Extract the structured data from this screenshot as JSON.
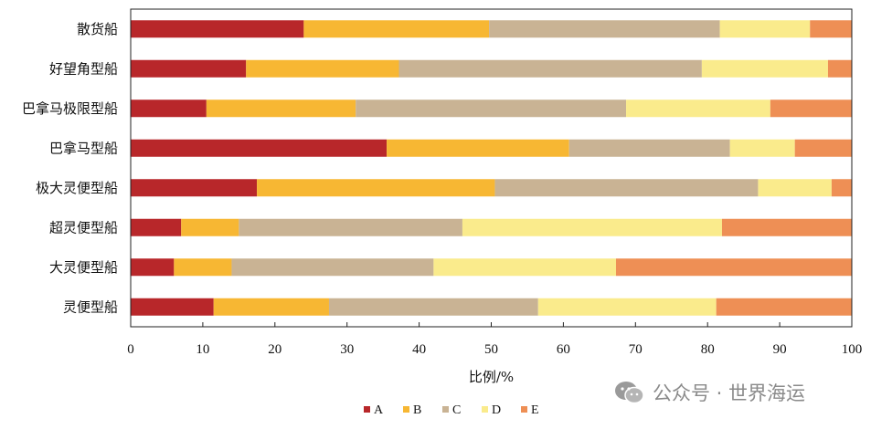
{
  "chart_data": {
    "type": "bar",
    "orientation": "horizontal",
    "stacked": true,
    "title": "",
    "xlabel": "比例/%",
    "ylabel": "",
    "xlim": [
      0,
      100
    ],
    "xticks": [
      0,
      10,
      20,
      30,
      40,
      50,
      60,
      70,
      80,
      90,
      100
    ],
    "grid": false,
    "legend_position": "bottom",
    "categories": [
      "散货船",
      "好望角型船",
      "巴拿马极限型船",
      "巴拿马型船",
      "极大灵便型船",
      "超灵便型船",
      "大灵便型船",
      "灵便型船"
    ],
    "series": [
      {
        "name": "A",
        "color": "#b8272a",
        "values": [
          24,
          16,
          10.5,
          35.5,
          17.5,
          7,
          6,
          11.5
        ]
      },
      {
        "name": "B",
        "color": "#f7b733",
        "values": [
          25.7,
          21.2,
          20.7,
          25.3,
          33,
          8,
          8,
          16
        ]
      },
      {
        "name": "C",
        "color": "#c9b394",
        "values": [
          32,
          42,
          37.5,
          22.3,
          36.5,
          31,
          28,
          29
        ]
      },
      {
        "name": "D",
        "color": "#faeb8c",
        "values": [
          12.5,
          17.5,
          20,
          9,
          10.2,
          36,
          25.3,
          24.7
        ]
      },
      {
        "name": "E",
        "color": "#ee8f55",
        "values": [
          5.8,
          3.3,
          11.3,
          7.9,
          2.8,
          18,
          32.7,
          18.8
        ]
      }
    ]
  },
  "watermark": {
    "text": "公众号 · 世界海运",
    "icon": "wechat-icon"
  }
}
